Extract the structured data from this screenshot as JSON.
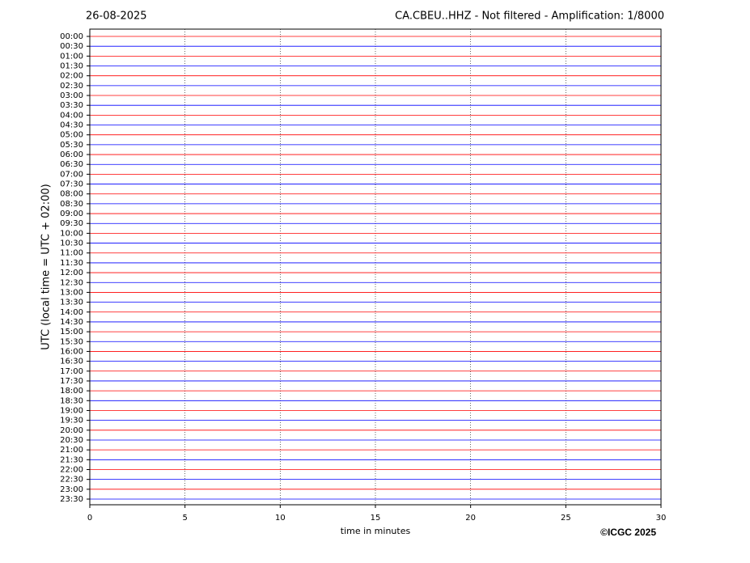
{
  "chart_data": {
    "type": "helicorder",
    "date": "26-08-2025",
    "title": "CA.CBEU..HHZ - Not filtered - Amplification: 1/8000",
    "ylabel": "UTC (local time = UTC + 02:00)",
    "xlabel": "time in minutes",
    "credit": "©ICGC 2025",
    "categories": [
      "00:00",
      "00:30",
      "01:00",
      "01:30",
      "02:00",
      "02:30",
      "03:00",
      "03:30",
      "04:00",
      "04:30",
      "05:00",
      "05:30",
      "06:00",
      "06:30",
      "07:00",
      "07:30",
      "08:00",
      "08:30",
      "09:00",
      "09:30",
      "10:00",
      "10:30",
      "11:00",
      "11:30",
      "12:00",
      "12:30",
      "13:00",
      "13:30",
      "14:00",
      "14:30",
      "15:00",
      "15:30",
      "16:00",
      "16:30",
      "17:00",
      "17:30",
      "18:00",
      "18:30",
      "19:00",
      "19:30",
      "20:00",
      "20:30",
      "21:00",
      "21:30",
      "22:00",
      "22:30",
      "23:00",
      "23:30"
    ],
    "xlim": [
      0,
      30
    ],
    "xticks": [
      0,
      5,
      10,
      15,
      20,
      25,
      30
    ],
    "trace_colors": [
      "#ff0000",
      "#0000ff"
    ],
    "grid": true
  }
}
